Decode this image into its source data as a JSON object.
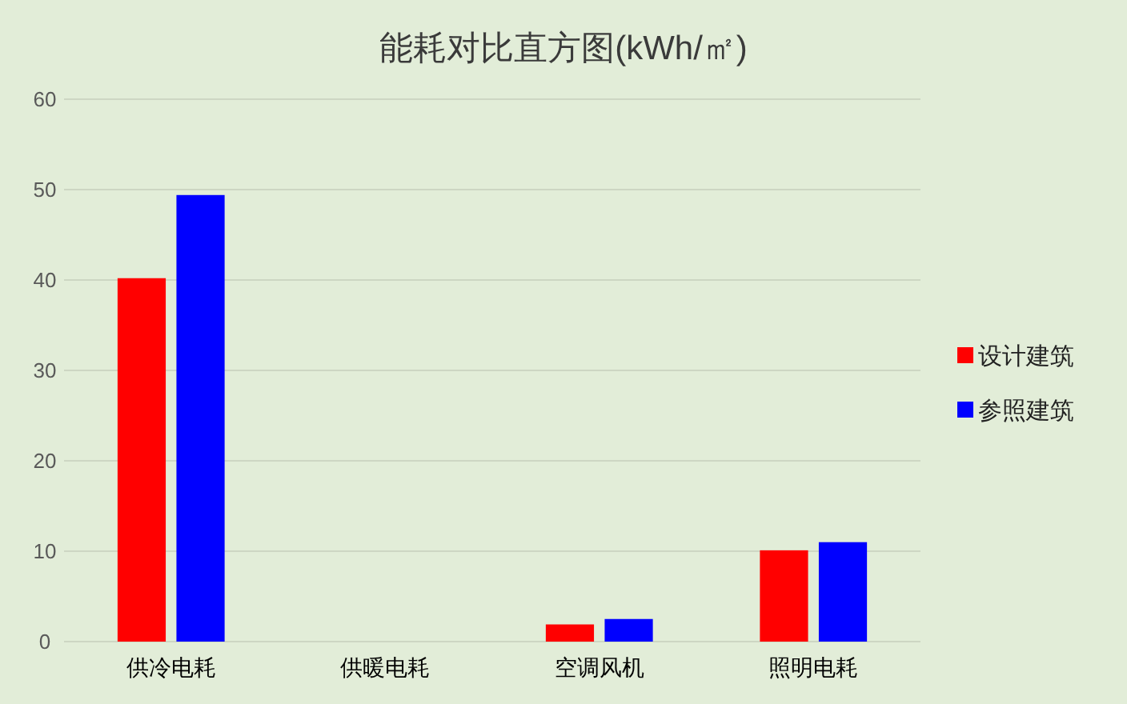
{
  "chart_data": {
    "type": "bar",
    "title": "能耗对比直方图(kWh/㎡)",
    "categories": [
      "供冷电耗",
      "供暖电耗",
      "空调风机",
      "照明电耗"
    ],
    "series": [
      {
        "name": "设计建筑",
        "color": "#ff0000",
        "values": [
          40.2,
          null,
          1.9,
          10.1
        ]
      },
      {
        "name": "参照建筑",
        "color": "#0000ff",
        "values": [
          49.4,
          null,
          2.5,
          11.0
        ]
      }
    ],
    "ylim": [
      0,
      60
    ],
    "yticks": [
      0,
      10,
      20,
      30,
      40,
      50,
      60
    ],
    "grid": "y",
    "legend": "right"
  }
}
